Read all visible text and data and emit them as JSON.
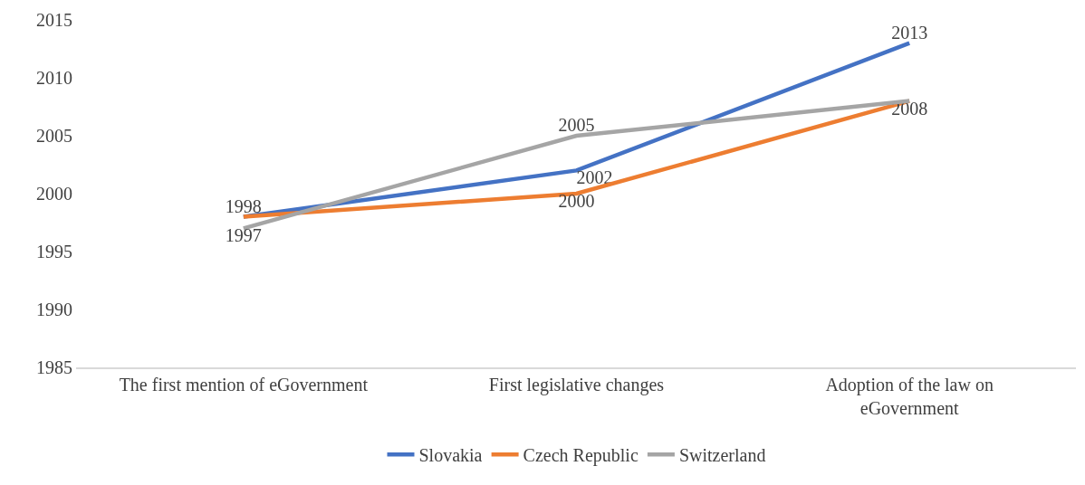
{
  "chart_data": {
    "type": "line",
    "categories": [
      "The first mention of eGovernment",
      "First legislative changes",
      "Adoption of the law on eGovernment"
    ],
    "series": [
      {
        "name": "Slovakia",
        "color": "#4472c4",
        "values": [
          1998,
          2002,
          2013
        ],
        "value_labels": [
          "1998",
          "2002",
          "2013"
        ]
      },
      {
        "name": "Czech Republic",
        "color": "#ed7d31",
        "values": [
          1998,
          2000,
          2008
        ],
        "value_labels": [
          null,
          "2000",
          "2008"
        ]
      },
      {
        "name": "Switzerland",
        "color": "#a5a5a5",
        "values": [
          1997,
          2005,
          2008
        ],
        "value_labels": [
          "1997",
          "2005",
          null
        ]
      }
    ],
    "ylim": [
      1985,
      2015
    ],
    "yticks": [
      1985,
      1990,
      1995,
      2000,
      2005,
      2010,
      2015
    ],
    "legend": "bottom",
    "marker": "none",
    "line_style": "solid"
  }
}
